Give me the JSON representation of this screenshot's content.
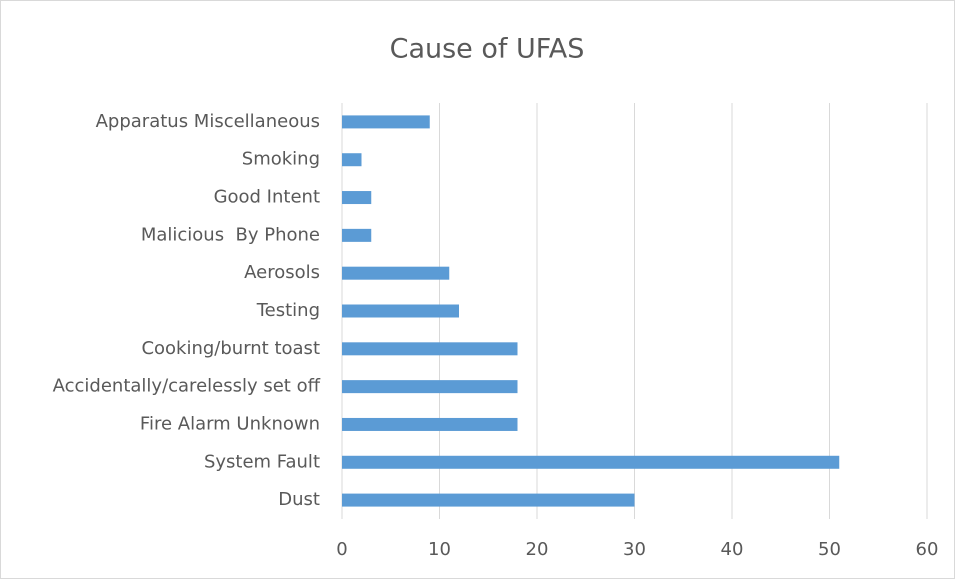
{
  "chart_data": {
    "type": "bar",
    "orientation": "horizontal",
    "title": "Cause of UFAS",
    "categories": [
      "Apparatus Miscellaneous",
      "Smoking",
      "Good Intent",
      "Malicious  By Phone",
      "Aerosols",
      "Testing",
      "Cooking/burnt toast",
      "Accidentally/carelessly set off",
      "Fire Alarm Unknown",
      "System Fault",
      "Dust"
    ],
    "values": [
      9,
      2,
      3,
      3,
      11,
      12,
      18,
      18,
      18,
      51,
      30
    ],
    "color": "#5b9bd5",
    "xlim": [
      0,
      60
    ],
    "xticks": [
      0,
      10,
      20,
      30,
      40,
      50,
      60
    ],
    "grid": true
  }
}
